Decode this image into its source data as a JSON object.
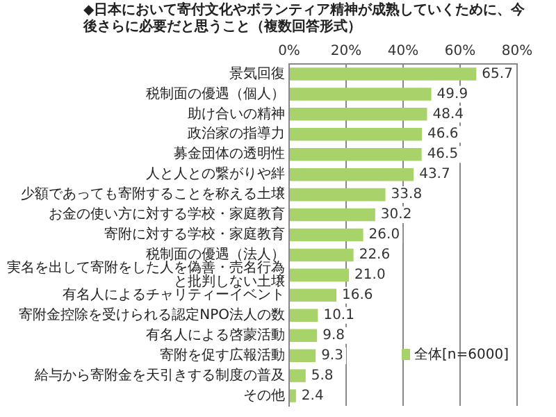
{
  "chart_data": {
    "type": "bar",
    "orientation": "horizontal",
    "title": "◆日本において寄付文化やボランティア精神が成熟していくために、今後さらに必要だと思うこと（複数回答形式）",
    "categories": [
      "景気回復",
      "税制面の優遇（個人）",
      "助け合いの精神",
      "政治家の指導力",
      "募金団体の透明性",
      "人と人との繋がりや絆",
      "少額であっても寄附することを称える土壌",
      "お金の使い方に対する学校・家庭教育",
      "寄附に対する学校・家庭教育",
      "税制面の優遇（法人）",
      "実名を出して寄附をした人を偽善・売名行為と批判しない土壌",
      "有名人によるチャリティーイベント",
      "寄附金控除を受けられる認定NPO法人の数",
      "有名人による啓蒙活動",
      "寄附を促す広報活動",
      "給与から寄附金を天引きする制度の普及",
      "その他"
    ],
    "series": [
      {
        "name": "全体[n=6000]",
        "color": "#a8d26a",
        "values": [
          65.7,
          49.9,
          48.4,
          46.6,
          46.5,
          43.7,
          33.8,
          30.2,
          26.0,
          22.6,
          21.0,
          16.6,
          10.1,
          9.8,
          9.3,
          5.8,
          2.4
        ],
        "value_labels": [
          "65.7",
          "49.9",
          "48.4",
          "46.6",
          "46.5",
          "43.7",
          "33.8",
          "30.2",
          "26.0",
          "22.6",
          "21.0",
          "16.6",
          "10.1",
          "9.8",
          "9.3",
          "5.8",
          "2.4"
        ]
      }
    ],
    "xlim": [
      0,
      80
    ],
    "xticks": [
      {
        "value": 0,
        "label": "0%"
      },
      {
        "value": 20,
        "label": "20%"
      },
      {
        "value": 40,
        "label": "40%"
      },
      {
        "value": 60,
        "label": "60%"
      },
      {
        "value": 80,
        "label": "80%"
      }
    ],
    "grid": "x",
    "legend": "bottom right"
  }
}
